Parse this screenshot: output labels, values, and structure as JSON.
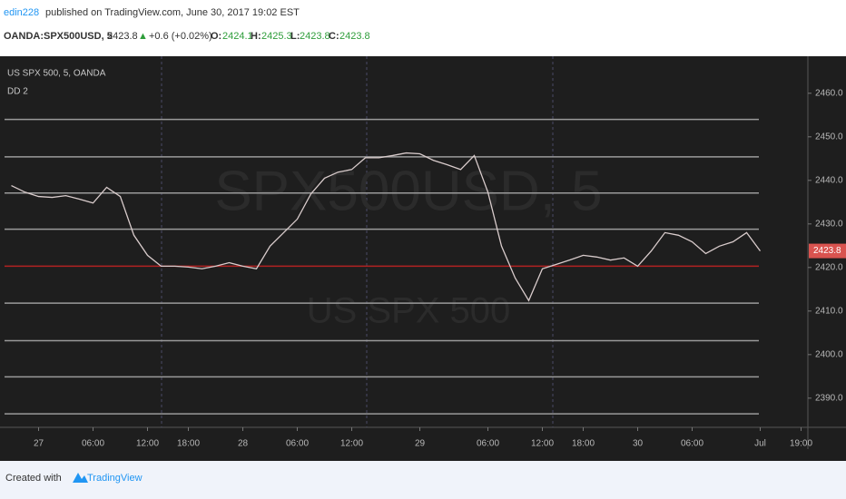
{
  "header": {
    "author": "edin228",
    "published": "published on TradingView.com, June 30, 2017 19:02 EST"
  },
  "quote": {
    "symbol": "OANDA:SPX500USD, 5",
    "price": "2423.8",
    "arrow": "▲",
    "change": "+0.6 (+0.02%)",
    "o_label": "O:",
    "o": "2424.1",
    "h_label": "H:",
    "h": "2425.3",
    "l_label": "L:",
    "l": "2423.8",
    "c_label": "C:",
    "c": "2423.8"
  },
  "chart_data": {
    "type": "line",
    "watermark": "SPX500USD, 5",
    "watermark_sub": "US SPX 500",
    "categories": [
      null,
      null,
      "27",
      null,
      null,
      null,
      "06:00",
      null,
      null,
      null,
      "12:00",
      null,
      null,
      "18:00",
      null,
      null,
      null,
      "28",
      null,
      null,
      null,
      "06:00",
      null,
      null,
      null,
      "12:00",
      null,
      null,
      null,
      null,
      "29",
      null,
      null,
      null,
      null,
      "06:00",
      null,
      null,
      null,
      "12:00",
      null,
      null,
      "18:00",
      null,
      null,
      null,
      "30",
      null,
      null,
      null,
      "06:00",
      null,
      null,
      null,
      null,
      "Jul",
      null,
      null,
      "19:00"
    ],
    "series": [
      {
        "name": "US SPX 500, 5, OANDA",
        "color": "#d9cccc",
        "values": [
          2438.8,
          2437.3,
          2436.3,
          2436.1,
          2436.5,
          2435.7,
          2434.8,
          2438.4,
          2436.3,
          2427.4,
          2422.8,
          2420.3,
          2420.3,
          2420.1,
          2419.7,
          2420.3,
          2421.1,
          2420.3,
          2419.7,
          2424.9,
          2428,
          2431.1,
          2436.9,
          2440.5,
          2441.9,
          2442.5,
          2445.2,
          2445.2,
          2445.7,
          2446.3,
          2446.1,
          2444.6,
          2443.6,
          2442.5,
          2445.7,
          2437.3,
          2424.9,
          2417.6,
          2412.4,
          2419.7,
          2420.7,
          2421.7,
          2422.8,
          2422.4,
          2421.7,
          2422.2,
          2420.3,
          2423.8,
          2428,
          2427.4,
          2425.9,
          2423.2,
          2424.9,
          2425.9,
          2428,
          2423.8,
          null,
          null,
          null
        ]
      }
    ],
    "indicator": {
      "name": "DD 2",
      "levels": [
        {
          "value": 2454.0,
          "color": "#9a9a9a"
        },
        {
          "value": 2445.4,
          "color": "#9a9a9a"
        },
        {
          "value": 2437.1,
          "color": "#9a9a9a"
        },
        {
          "value": 2428.8,
          "color": "#9a9a9a"
        },
        {
          "value": 2420.3,
          "color": "#b22222"
        },
        {
          "value": 2411.8,
          "color": "#9a9a9a"
        },
        {
          "value": 2403.2,
          "color": "#9a9a9a"
        },
        {
          "value": 2394.9,
          "color": "#9a9a9a"
        },
        {
          "value": 2386.4,
          "color": "#9a9a9a"
        }
      ]
    },
    "last_price": {
      "value": 2423.8,
      "label": "2423.8",
      "color": "#d9534f"
    },
    "ylim": [
      2383.3,
      2468.5
    ],
    "yticks": [
      {
        "value": 2390,
        "label": "2390.0"
      },
      {
        "value": 2400,
        "label": "2400.0"
      },
      {
        "value": 2410,
        "label": "2410.0"
      },
      {
        "value": 2420,
        "label": "2420.0"
      },
      {
        "value": 2430,
        "label": "2430.0"
      },
      {
        "value": 2440,
        "label": "2440.0"
      },
      {
        "value": 2450,
        "label": "2450.0"
      },
      {
        "value": 2460,
        "label": "2460.0"
      }
    ]
  },
  "footer": {
    "created": "Created with",
    "brand": "TradingView"
  }
}
